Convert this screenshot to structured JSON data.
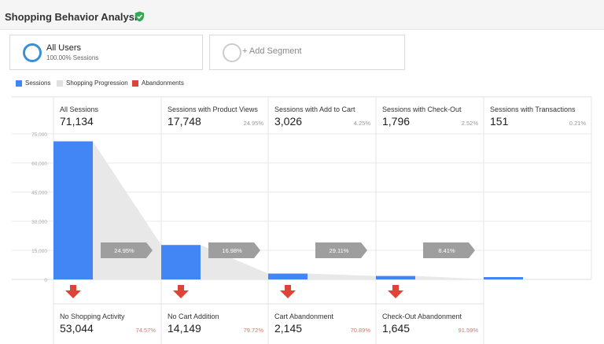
{
  "header": {
    "title": "Shopping Behavior Analysis",
    "icon": "verified-shield-icon"
  },
  "segments": [
    {
      "name": "All Users",
      "sub": "100.00% Sessions",
      "active": true
    },
    {
      "name": "+ Add Segment",
      "active": false
    }
  ],
  "legend": [
    {
      "label": "Sessions",
      "color": "#4285f4"
    },
    {
      "label": "Shopping Progression",
      "color": "#e0e0e0"
    },
    {
      "label": "Abandonments",
      "color": "#db4437"
    }
  ],
  "chart_data": {
    "type": "bar",
    "ylim": [
      0,
      75000
    ],
    "y_ticks": [
      "75,000",
      "60,000",
      "45,000",
      "30,000",
      "15,000",
      "0"
    ],
    "stages": [
      {
        "label": "All Sessions",
        "value_text": "71,134",
        "value": 71134,
        "pct": ""
      },
      {
        "label": "Sessions with Product Views",
        "value_text": "17,748",
        "value": 17748,
        "pct": "24.95%"
      },
      {
        "label": "Sessions with Add to Cart",
        "value_text": "3,026",
        "value": 3026,
        "pct": "4.25%"
      },
      {
        "label": "Sessions with Check-Out",
        "value_text": "1,796",
        "value": 1796,
        "pct": "2.52%"
      },
      {
        "label": "Sessions with Transactions",
        "value_text": "151",
        "value": 151,
        "pct": "0.21%"
      }
    ],
    "progression": [
      "24.95%",
      "16.98%",
      "29.11%",
      "8.41%"
    ],
    "abandonments": [
      {
        "label": "No Shopping Activity",
        "value_text": "53,044",
        "value": 53044,
        "pct": "74.57%"
      },
      {
        "label": "No Cart Addition",
        "value_text": "14,149",
        "value": 14149,
        "pct": "79.72%"
      },
      {
        "label": "Cart Abandonment",
        "value_text": "2,145",
        "value": 2145,
        "pct": "70.89%"
      },
      {
        "label": "Check-Out Abandonment",
        "value_text": "1,645",
        "value": 1645,
        "pct": "91.59%"
      }
    ],
    "colors": {
      "bar": "#4285f4",
      "progression": "#e8e8e8",
      "arrow_box": "#9e9e9e",
      "abandon": "#db4437",
      "abandon_pct": "#e57368",
      "grid": "#e9e9e9"
    }
  }
}
